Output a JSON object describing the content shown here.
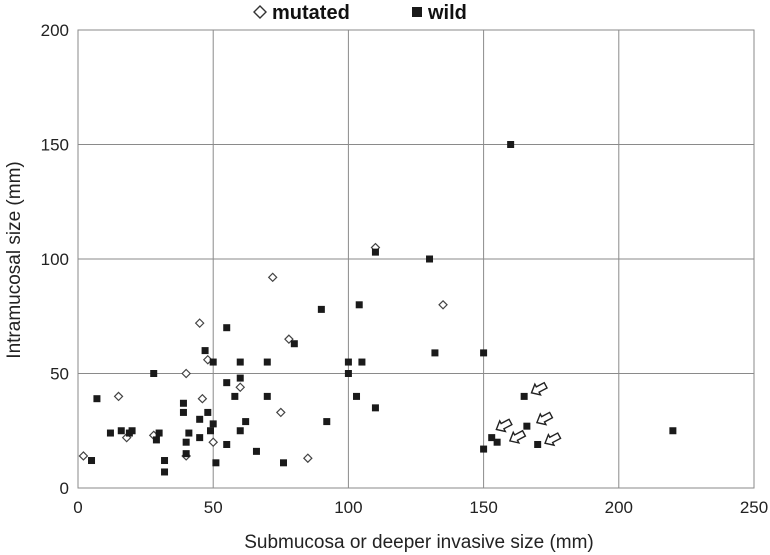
{
  "chart_data": {
    "type": "scatter",
    "xlabel": "Submucosa or deeper invasive size (mm)",
    "ylabel": "Intramucosal size (mm)",
    "xlim": [
      0,
      250
    ],
    "ylim": [
      0,
      200
    ],
    "xticks": [
      "0",
      "50",
      "100",
      "150",
      "200",
      "250"
    ],
    "yticks": [
      "0",
      "50",
      "100",
      "150",
      "200"
    ],
    "grid": true,
    "legend_position": "top-center",
    "series": [
      {
        "name": "mutated",
        "marker": "diamond-open",
        "points": [
          [
            2,
            14
          ],
          [
            15,
            40
          ],
          [
            18,
            22
          ],
          [
            28,
            23
          ],
          [
            40,
            50
          ],
          [
            40,
            14
          ],
          [
            45,
            72
          ],
          [
            46,
            39
          ],
          [
            48,
            56
          ],
          [
            50,
            20
          ],
          [
            60,
            44
          ],
          [
            72,
            92
          ],
          [
            75,
            33
          ],
          [
            78,
            65
          ],
          [
            85,
            13
          ],
          [
            110,
            105
          ],
          [
            135,
            80
          ]
        ]
      },
      {
        "name": "wild",
        "marker": "square-filled",
        "points": [
          [
            5,
            12
          ],
          [
            7,
            39
          ],
          [
            12,
            24
          ],
          [
            16,
            25
          ],
          [
            19,
            24
          ],
          [
            20,
            25
          ],
          [
            28,
            50
          ],
          [
            29,
            21
          ],
          [
            30,
            24
          ],
          [
            32,
            12
          ],
          [
            32,
            7
          ],
          [
            39,
            37
          ],
          [
            39,
            33
          ],
          [
            40,
            20
          ],
          [
            40,
            15
          ],
          [
            41,
            24
          ],
          [
            45,
            30
          ],
          [
            45,
            22
          ],
          [
            47,
            60
          ],
          [
            48,
            33
          ],
          [
            49,
            25
          ],
          [
            50,
            28
          ],
          [
            50,
            55
          ],
          [
            51,
            11
          ],
          [
            55,
            70
          ],
          [
            55,
            46
          ],
          [
            55,
            19
          ],
          [
            58,
            40
          ],
          [
            60,
            25
          ],
          [
            60,
            48
          ],
          [
            60,
            55
          ],
          [
            62,
            29
          ],
          [
            66,
            16
          ],
          [
            70,
            40
          ],
          [
            70,
            55
          ],
          [
            76,
            11
          ],
          [
            80,
            63
          ],
          [
            90,
            78
          ],
          [
            92,
            29
          ],
          [
            100,
            55
          ],
          [
            100,
            50
          ],
          [
            103,
            40
          ],
          [
            104,
            80
          ],
          [
            105,
            55
          ],
          [
            110,
            103
          ],
          [
            110,
            35
          ],
          [
            130,
            100
          ],
          [
            132,
            59
          ],
          [
            150,
            59
          ],
          [
            150,
            17
          ],
          [
            153,
            22
          ],
          [
            155,
            20
          ],
          [
            160,
            150
          ],
          [
            165,
            40
          ],
          [
            166,
            27
          ],
          [
            170,
            19
          ],
          [
            220,
            25
          ]
        ]
      }
    ],
    "annotations": [
      {
        "type": "arrow",
        "x": 170,
        "y": 43
      },
      {
        "type": "arrow",
        "x": 172,
        "y": 30
      },
      {
        "type": "arrow",
        "x": 175,
        "y": 21
      },
      {
        "type": "arrow",
        "x": 157,
        "y": 27
      },
      {
        "type": "arrow",
        "x": 162,
        "y": 22
      }
    ]
  }
}
